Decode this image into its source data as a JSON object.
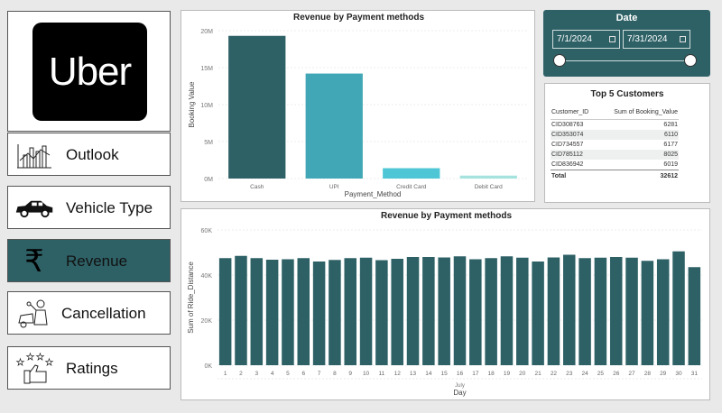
{
  "logo": {
    "text": "Uber"
  },
  "nav": [
    {
      "label": "Outlook",
      "icon": "chart-icon",
      "active": false
    },
    {
      "label": "Vehicle Type",
      "icon": "car-icon",
      "active": false
    },
    {
      "label": "Revenue",
      "icon": "rupee-icon",
      "active": true
    },
    {
      "label": "Cancellation",
      "icon": "mechanic-icon",
      "active": false
    },
    {
      "label": "Ratings",
      "icon": "thumbs-up-stars-icon",
      "active": false
    }
  ],
  "date_slicer": {
    "title": "Date",
    "start": "7/1/2024",
    "end": "7/31/2024"
  },
  "top_customers": {
    "title": "Top 5 Customers",
    "columns": [
      "Customer_ID",
      "Sum of Booking_Value"
    ],
    "rows": [
      [
        "CID308763",
        "6281"
      ],
      [
        "CID353074",
        "6110"
      ],
      [
        "CID734557",
        "6177"
      ],
      [
        "CID785112",
        "8025"
      ],
      [
        "CID836942",
        "6019"
      ]
    ],
    "total_label": "Total",
    "total_value": "32612"
  },
  "chart_data": [
    {
      "type": "bar",
      "title": "Revenue by Payment methods",
      "xlabel": "Payment_Method",
      "ylabel": "Booking Value",
      "categories": [
        "Cash",
        "UPI",
        "Credit Card",
        "Debit Card"
      ],
      "values": [
        19300000,
        14200000,
        1400000,
        400000
      ],
      "colors": [
        "#2e6166",
        "#41a7b6",
        "#4fc6d6",
        "#a6e3de"
      ],
      "yticks": [
        "0M",
        "5M",
        "10M",
        "15M",
        "20M"
      ],
      "ylim": [
        0,
        20000000
      ],
      "grid": true
    },
    {
      "type": "bar",
      "title": "Revenue by Payment methods",
      "xlabel": "Day",
      "ylabel": "Sum of Ride_Distance",
      "group_label": "July",
      "categories": [
        "1",
        "2",
        "3",
        "4",
        "5",
        "6",
        "7",
        "8",
        "9",
        "10",
        "11",
        "12",
        "13",
        "14",
        "15",
        "16",
        "17",
        "18",
        "19",
        "20",
        "21",
        "22",
        "23",
        "24",
        "25",
        "26",
        "27",
        "28",
        "29",
        "30",
        "31"
      ],
      "values": [
        47500,
        48500,
        47500,
        46800,
        47000,
        47500,
        46000,
        46700,
        47500,
        47700,
        46600,
        47200,
        48000,
        48000,
        47800,
        48300,
        47000,
        47500,
        48300,
        47700,
        46000,
        47800,
        49000,
        47500,
        47700,
        48000,
        47700,
        46300,
        47000,
        50500,
        43500
      ],
      "color": "#2e6166",
      "yticks": [
        "0K",
        "20K",
        "40K",
        "60K"
      ],
      "ylim": [
        0,
        60000
      ],
      "grid": true
    }
  ]
}
